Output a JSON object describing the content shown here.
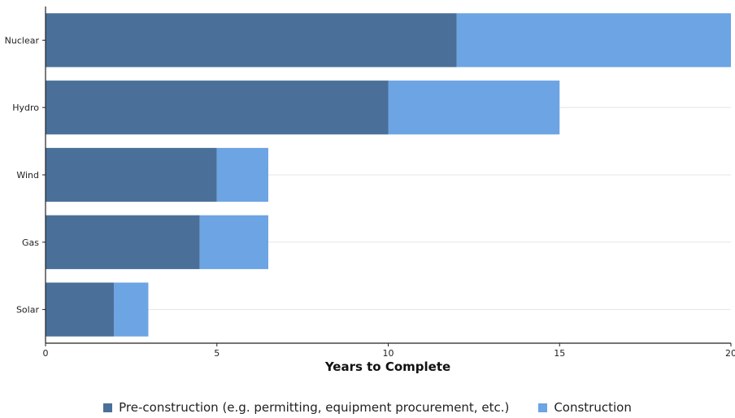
{
  "chart_data": {
    "type": "bar",
    "orientation": "horizontal",
    "stacked": true,
    "categories": [
      "Nuclear",
      "Hydro",
      "Wind",
      "Gas",
      "Solar"
    ],
    "series": [
      {
        "name": "Pre-construction (e.g. permitting, equipment procurement, etc.)",
        "values": [
          12,
          10,
          5,
          4.5,
          2
        ],
        "color": "#4a7099"
      },
      {
        "name": "Construction",
        "values": [
          8,
          5,
          1.5,
          2,
          1
        ],
        "color": "#6ca4e4"
      }
    ],
    "title": "",
    "xlabel": "Years to Complete",
    "ylabel": "",
    "xlim": [
      0,
      20
    ],
    "xticks": [
      0,
      5,
      10,
      15,
      20
    ],
    "grid": "horizontal",
    "legend": "bottom-center"
  }
}
